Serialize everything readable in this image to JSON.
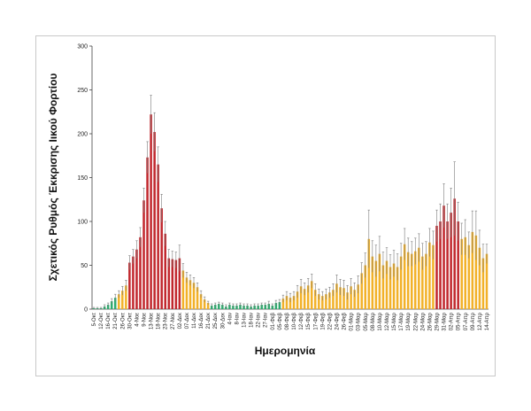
{
  "chart_data": {
    "type": "bar",
    "title": "",
    "xlabel": "Ημερομηνία",
    "ylabel": "Σχετικός Ρυθμός Έκκρισης Ιικού Φορτίου",
    "ylim": [
      0,
      300
    ],
    "yticks": [
      0,
      50,
      100,
      150,
      200,
      250,
      300
    ],
    "grid": false,
    "colors": {
      "green": "#2eab6e",
      "orange": "#f2b128",
      "red": "#c1272d",
      "error": "#7a7a7a"
    },
    "tick_labels": [
      "5-Οκτ",
      "12-Οκτ",
      "16-Οκτ",
      "21-Οκτ",
      "26-Οκτ",
      "30-Οκτ",
      "4-Νοε",
      "9-Νοε",
      "13-Νοε",
      "18-Νοε",
      "23-Νοε",
      "27-Νοε",
      "02-Δεκ",
      "07-Δεκ",
      "11-Δεκ",
      "16-Δεκ",
      "21-Δεκ",
      "25-Δεκ",
      "30-Δεκ",
      "4-Ιαν",
      "8-Ιαν",
      "13-Ιαν",
      "18-Ιαν",
      "22-Ιαν",
      "27-Ιαν",
      "01-Φεβ",
      "05-Φεβ",
      "08-Φεβ",
      "10-Φεβ",
      "12-Φεβ",
      "15-Φεβ",
      "17-Φεβ",
      "19-Φεβ",
      "22-Φεβ",
      "24-Φεβ",
      "26-Φεβ",
      "01-Μαρ",
      "03-Μαρ",
      "05-Μαρ",
      "08-Μαρ",
      "10-Μαρ",
      "12-Μαρ",
      "15-Μαρ",
      "17-Μαρ",
      "19-Μαρ",
      "22-Μαρ",
      "24-Μαρ",
      "26-Μαρ",
      "29-Μαρ",
      "31-Μαρ",
      "02-Απρ",
      "05-Απρ",
      "07-Απρ",
      "09-Απρ",
      "12-Απρ",
      "14-Απρ"
    ],
    "values": [
      1,
      1,
      1,
      3,
      5,
      9,
      13,
      17,
      21,
      27,
      53,
      60,
      68,
      82,
      124,
      173,
      222,
      202,
      165,
      115,
      86,
      58,
      57,
      56,
      58,
      44,
      36,
      33,
      30,
      25,
      17,
      11,
      7,
      4,
      5,
      6,
      5,
      3,
      5,
      4,
      4,
      5,
      4,
      4,
      3,
      4,
      4,
      5,
      5,
      6,
      4,
      7,
      8,
      12,
      15,
      13,
      15,
      20,
      26,
      23,
      27,
      32,
      22,
      17,
      15,
      17,
      19,
      22,
      29,
      25,
      24,
      19,
      26,
      22,
      28,
      41,
      50,
      80,
      60,
      55,
      63,
      50,
      55,
      48,
      52,
      48,
      60,
      74,
      65,
      63,
      66,
      70,
      60,
      63,
      76,
      73,
      95,
      100,
      118,
      100,
      110,
      126,
      100,
      80,
      82,
      73,
      88,
      84,
      70,
      58,
      63
    ],
    "errors": [
      1,
      1,
      1,
      2,
      2,
      3,
      4,
      4,
      5,
      6,
      8,
      8,
      10,
      11,
      14,
      18,
      22,
      22,
      20,
      16,
      14,
      10,
      9,
      9,
      15,
      8,
      6,
      6,
      6,
      5,
      4,
      3,
      2,
      2,
      2,
      2,
      2,
      2,
      2,
      2,
      2,
      2,
      2,
      2,
      2,
      2,
      2,
      2,
      2,
      3,
      2,
      3,
      3,
      4,
      5,
      5,
      5,
      7,
      8,
      7,
      8,
      8,
      7,
      6,
      5,
      6,
      6,
      7,
      10,
      9,
      9,
      8,
      9,
      8,
      10,
      12,
      14,
      33,
      18,
      18,
      20,
      15,
      15,
      14,
      15,
      15,
      15,
      18,
      16,
      14,
      15,
      16,
      15,
      14,
      16,
      16,
      18,
      20,
      25,
      20,
      28,
      42,
      22,
      18,
      20,
      15,
      24,
      28,
      20,
      16,
      11
    ],
    "colors_by_bar": [
      "green",
      "green",
      "green",
      "green",
      "green",
      "green",
      "green",
      "orange",
      "orange",
      "orange",
      "red",
      "red",
      "red",
      "red",
      "red",
      "red",
      "red",
      "red",
      "red",
      "red",
      "red",
      "red",
      "red",
      "red",
      "red",
      "orange",
      "orange",
      "orange",
      "orange",
      "orange",
      "orange",
      "orange",
      "orange",
      "green",
      "green",
      "green",
      "green",
      "green",
      "green",
      "green",
      "green",
      "green",
      "green",
      "green",
      "green",
      "green",
      "green",
      "green",
      "green",
      "green",
      "green",
      "green",
      "green",
      "orange",
      "orange",
      "orange",
      "orange",
      "orange",
      "orange",
      "orange",
      "orange",
      "orange",
      "orange",
      "orange",
      "orange",
      "orange",
      "orange",
      "orange",
      "orange",
      "orange",
      "orange",
      "orange",
      "orange",
      "orange",
      "orange",
      "orange",
      "orange",
      "orange",
      "orange",
      "orange",
      "orange",
      "orange",
      "orange",
      "orange",
      "orange",
      "orange",
      "orange",
      "orange",
      "orange",
      "orange",
      "orange",
      "orange",
      "orange",
      "orange",
      "orange",
      "orange",
      "red",
      "red",
      "red",
      "red",
      "red",
      "red",
      "red",
      "orange",
      "orange",
      "orange",
      "orange",
      "orange",
      "orange",
      "orange",
      "orange"
    ]
  }
}
